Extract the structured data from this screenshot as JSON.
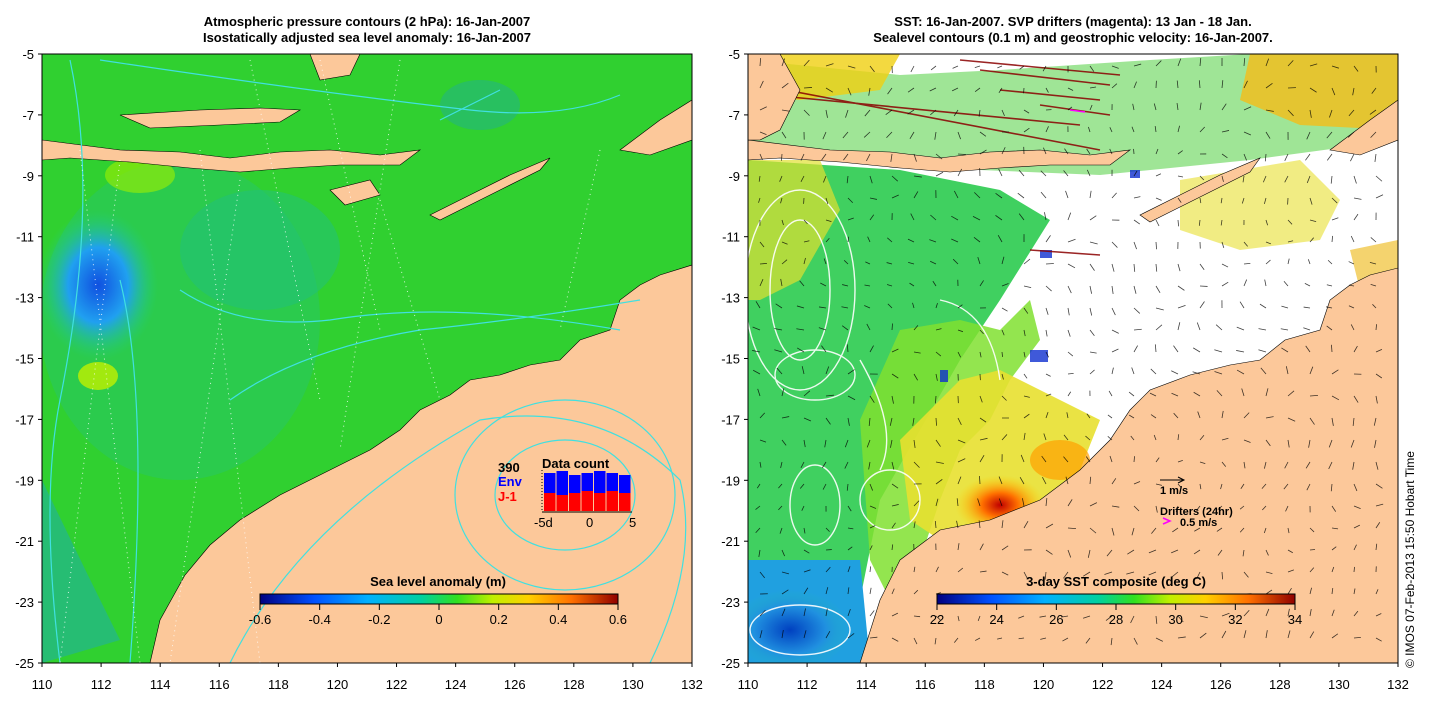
{
  "left_panel": {
    "title_line1": "Atmospheric pressure contours (2 hPa): 16-Jan-2007",
    "title_line2": "Isostatically adjusted sea level anomaly: 16-Jan-2007",
    "colorbar": {
      "title": "Sea level anomaly (m)",
      "ticks": [
        "-0.6",
        "-0.4",
        "-0.2",
        "0",
        "0.2",
        "0.4",
        "0.6"
      ]
    },
    "data_count_inset": {
      "title": "Data count",
      "count": "390",
      "series1": "Env",
      "series2": "J-1",
      "axis_ticks": [
        "-5d",
        "0",
        "5"
      ],
      "series1_color": "#0000ff",
      "series2_color": "#ff0000",
      "env_fraction": [
        0.95,
        1.0,
        0.9,
        0.95,
        1.0,
        0.95,
        0.9
      ],
      "j1_fraction": [
        0.45,
        0.4,
        0.45,
        0.5,
        0.45,
        0.5,
        0.45
      ]
    }
  },
  "right_panel": {
    "title_line1": "SST: 16-Jan-2007. SVP drifters (magenta): 13 Jan - 18 Jan.",
    "title_line2": "Sealevel contours (0.1 m) and geostrophic velocity: 16-Jan-2007.",
    "colorbar": {
      "title": "3-day SST composite (deg C)",
      "ticks": [
        "22",
        "24",
        "26",
        "28",
        "30",
        "32",
        "34"
      ]
    },
    "legend": {
      "velocity_label": "1 m/s",
      "drifters_label": "Drifters (24hr)",
      "drifter_speed_label": "0.5 m/s",
      "drifter_color": "#ff00ff"
    }
  },
  "axes": {
    "x_ticks": [
      "110",
      "112",
      "114",
      "116",
      "118",
      "120",
      "122",
      "124",
      "126",
      "128",
      "130",
      "132"
    ],
    "y_ticks": [
      "-5",
      "-7",
      "-9",
      "-11",
      "-13",
      "-15",
      "-17",
      "-19",
      "-21",
      "-23",
      "-25"
    ],
    "lon_range": [
      110,
      132
    ],
    "lat_range": [
      -25,
      -5
    ]
  },
  "colors": {
    "land": "#fcc89a",
    "ocean_green": "#22d020",
    "pressure_contour": "#40e0e0"
  },
  "copyright": "© IMOS 07-Feb-2013 15:50 Hobart Time"
}
